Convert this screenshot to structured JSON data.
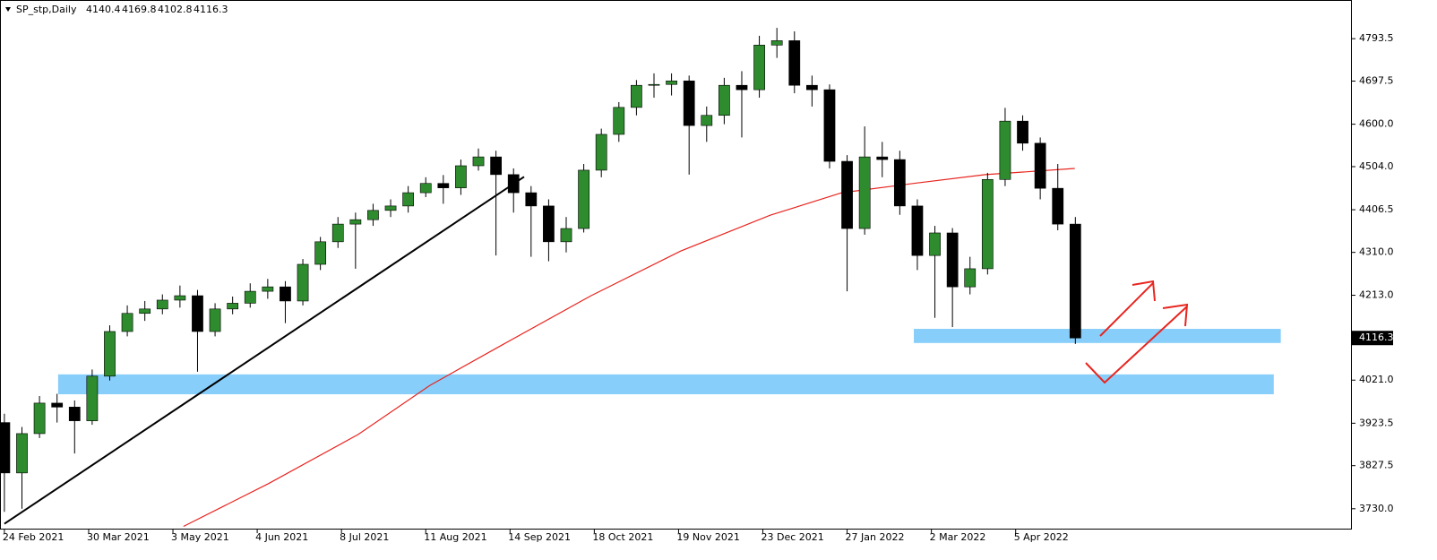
{
  "chart_data": {
    "type": "candlestick",
    "title": "SP_stp,Daily",
    "header_ohlc": [
      4140.4,
      4169.8,
      4102.8,
      4116.3
    ],
    "ylim": [
      3685,
      4881
    ],
    "yticks": [
      {
        "value": 3730,
        "label": "3730.0"
      },
      3827.5,
      3923.5,
      {
        "value": 4021,
        "label": "4021.0"
      },
      {
        "value": 4213,
        "label": "4213.0"
      },
      {
        "value": 4310,
        "label": "4310.0"
      },
      4406.5,
      {
        "value": 4504,
        "label": "4504.0"
      },
      {
        "value": 4600,
        "label": "4600.0"
      },
      4697.5,
      4793.5
    ],
    "last_price": 4116.3,
    "xlim": [
      -0.25,
      76.7
    ],
    "xticks": [
      {
        "value": 0,
        "label": "24 Feb 2021"
      },
      {
        "value": 4.8,
        "label": "30 Mar 2021"
      },
      {
        "value": 9.6,
        "label": "3 May 2021"
      },
      {
        "value": 14.4,
        "label": "4 Jun 2021"
      },
      {
        "value": 19.2,
        "label": "8 Jul 2021"
      },
      {
        "value": 24,
        "label": "11 Aug 2021"
      },
      {
        "value": 28.8,
        "label": "14 Sep 2021"
      },
      {
        "value": 33.6,
        "label": "18 Oct 2021"
      },
      {
        "value": 38.4,
        "label": "19 Nov 2021"
      },
      {
        "value": 43.2,
        "label": "23 Dec 2021"
      },
      {
        "value": 48,
        "label": "27 Jan 2022"
      },
      {
        "value": 52.8,
        "label": "2 Mar 2022"
      },
      {
        "value": 57.6,
        "label": "5 Apr 2022"
      }
    ],
    "up_color": "#2e8b2e",
    "down_color": "#000000",
    "open": [
      3925,
      3811,
      3900,
      3969,
      3960,
      3929,
      4030,
      4131,
      4172,
      4182,
      4202,
      4212,
      4131,
      4182,
      4195,
      4222,
      4232,
      4200,
      4283,
      4334,
      4374,
      4384,
      4405,
      4415,
      4445,
      4466,
      4456,
      4506,
      4526,
      4486,
      4445,
      4415,
      4334,
      4364,
      4496,
      4577,
      4638,
      4688,
      4690,
      4698,
      4597,
      4620,
      4688,
      4678,
      4779,
      4789,
      4688,
      4678,
      4516,
      4364,
      4526,
      4520,
      4415,
      4303,
      4354,
      4232,
      4273,
      4475,
      4607,
      4557,
      4455,
      4374
    ],
    "high": [
      3945,
      3915,
      3985,
      3990,
      3975,
      4045,
      4145,
      4190,
      4200,
      4215,
      4235,
      4225,
      4195,
      4210,
      4240,
      4250,
      4245,
      4295,
      4345,
      4390,
      4400,
      4420,
      4430,
      4460,
      4480,
      4485,
      4520,
      4545,
      4540,
      4500,
      4460,
      4430,
      4390,
      4510,
      4590,
      4650,
      4700,
      4715,
      4715,
      4710,
      4640,
      4705,
      4720,
      4800,
      4818,
      4810,
      4710,
      4690,
      4530,
      4595,
      4560,
      4540,
      4430,
      4370,
      4365,
      4300,
      4490,
      4637,
      4620,
      4570,
      4510,
      4390
    ],
    "low": [
      3723,
      3730,
      3890,
      3925,
      3855,
      3920,
      4020,
      4120,
      4155,
      4170,
      4185,
      4040,
      4120,
      4170,
      4185,
      4205,
      4150,
      4190,
      4270,
      4320,
      4273,
      4370,
      4390,
      4400,
      4435,
      4420,
      4440,
      4495,
      4303,
      4400,
      4300,
      4290,
      4310,
      4355,
      4480,
      4560,
      4620,
      4660,
      4665,
      4486,
      4560,
      4600,
      4570,
      4660,
      4750,
      4670,
      4640,
      4500,
      4222,
      4350,
      4480,
      4395,
      4270,
      4162,
      4141,
      4215,
      4260,
      4460,
      4540,
      4430,
      4360,
      4102.8
    ],
    "close": [
      3811,
      3900,
      3969,
      3960,
      3929,
      4030,
      4131,
      4172,
      4182,
      4202,
      4212,
      4131,
      4182,
      4195,
      4222,
      4232,
      4200,
      4283,
      4334,
      4374,
      4384,
      4405,
      4415,
      4445,
      4466,
      4456,
      4506,
      4526,
      4486,
      4445,
      4415,
      4334,
      4364,
      4496,
      4577,
      4638,
      4688,
      4690,
      4698,
      4597,
      4620,
      4688,
      4678,
      4779,
      4789,
      4688,
      4678,
      4516,
      4364,
      4526,
      4520,
      4415,
      4303,
      4354,
      4232,
      4273,
      4475,
      4607,
      4557,
      4455,
      4374,
      4116.3
    ],
    "moving_average": {
      "color": "#e8251f",
      "x": [
        10.2,
        12.5,
        15.05,
        20.15,
        24.23,
        28.32,
        33.42,
        38.52,
        43.62,
        47.7,
        51.79,
        55.87,
        60.97
      ],
      "values": [
        3690,
        3736,
        3787,
        3898,
        4009,
        4100,
        4212,
        4313,
        4394,
        4445,
        4466,
        4486,
        4500
      ]
    },
    "trendline": {
      "color": "#000000",
      "x": [
        0,
        29.6
      ],
      "values": [
        3696,
        4481
      ]
    },
    "zones": [
      {
        "color": "#87cefa",
        "x": [
          51.8,
          72.7
        ],
        "values": [
          4105,
          4137
        ]
      },
      {
        "color": "#87cefa",
        "x": [
          3.06,
          72.3
        ],
        "values": [
          3989,
          4034
        ]
      }
    ]
  }
}
